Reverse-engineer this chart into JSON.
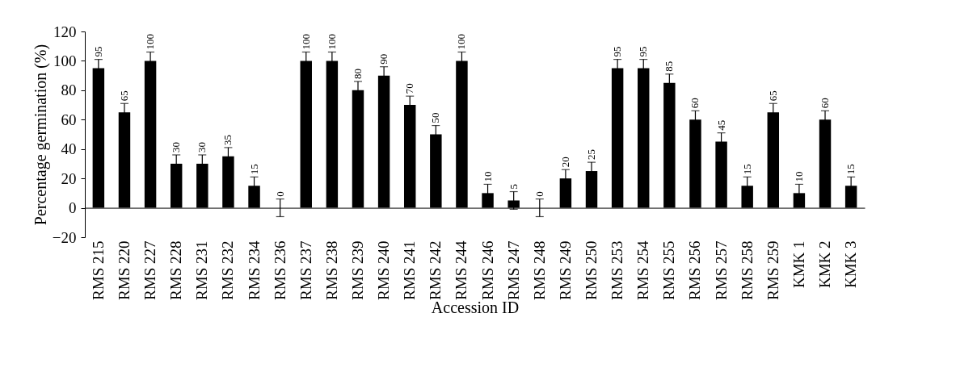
{
  "chart_data": {
    "type": "bar",
    "xlabel": "Accession ID",
    "ylabel": "Percentage germination (%)",
    "categories": [
      "RMS 215",
      "RMS 220",
      "RMS 227",
      "RMS 228",
      "RMS 231",
      "RMS 232",
      "RMS 234",
      "RMS 236",
      "RMS 237",
      "RMS 238",
      "RMS 239",
      "RMS 240",
      "RMS 241",
      "RMS 242",
      "RMS 244",
      "RMS 246",
      "RMS 247",
      "RMS 248",
      "RMS 249",
      "RMS 250",
      "RMS 253",
      "RMS 254",
      "RMS 255",
      "RMS 256",
      "RMS 257",
      "RMS 258",
      "RMS 259",
      "KMK 1",
      "KMK 2",
      "KMK 3"
    ],
    "series": [
      {
        "color": "#000000",
        "values": [
          95,
          65,
          100,
          30,
          30,
          35,
          15,
          0,
          100,
          100,
          80,
          90,
          70,
          50,
          100,
          10,
          5,
          0,
          20,
          25,
          95,
          95,
          85,
          60,
          45,
          15,
          65,
          10,
          60,
          15
        ],
        "errors": [
          6,
          6,
          6,
          6,
          6,
          6,
          6,
          6,
          6,
          6,
          6,
          6,
          6,
          6,
          6,
          6,
          6,
          6,
          6,
          6,
          6,
          6,
          6,
          6,
          6,
          6,
          6,
          6,
          6,
          6
        ]
      }
    ],
    "ylim": [
      -20,
      120
    ],
    "yticks": [
      -20,
      0,
      20,
      40,
      60,
      80,
      100,
      120
    ],
    "data_labels": true
  }
}
